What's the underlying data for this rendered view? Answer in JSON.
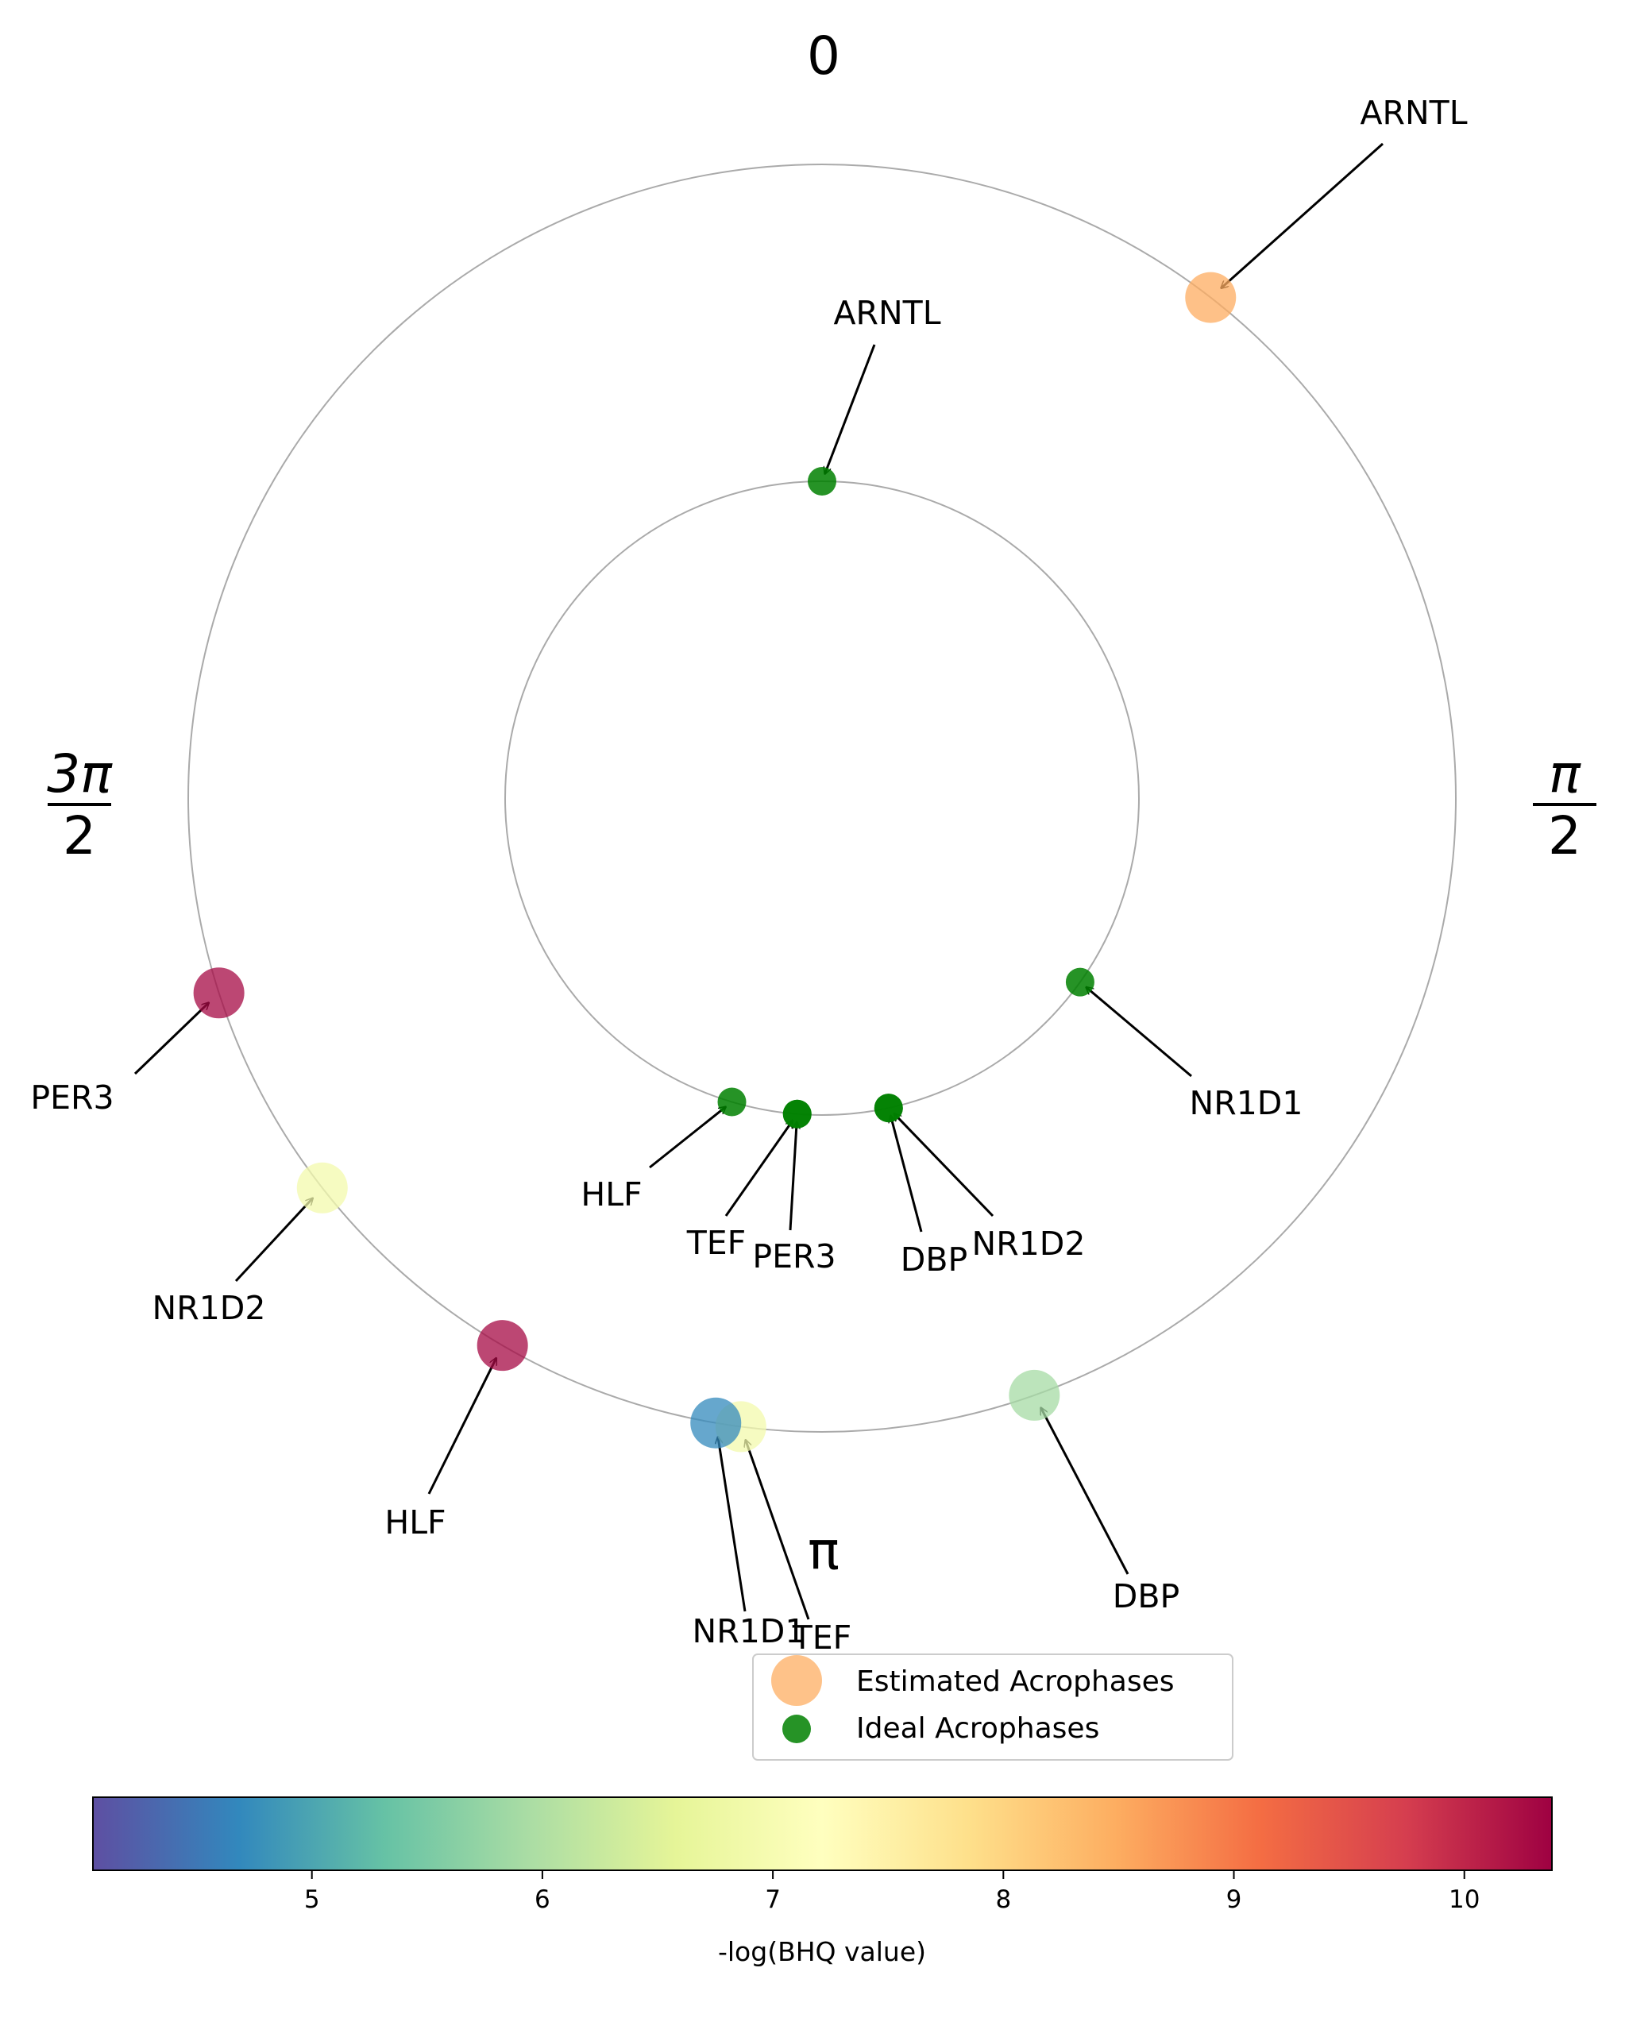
{
  "chart_data": {
    "type": "scatter",
    "coordinate_system": "polar",
    "angular_direction": "clockwise",
    "angular_zero": "top",
    "angular_tick_labels": [
      "0",
      "π/2",
      "π",
      "3π/2"
    ],
    "rings": [
      {
        "name": "Ideal Acrophases",
        "radius": 1.0
      },
      {
        "name": "Estimated Acrophases",
        "radius": 2.0
      }
    ],
    "series": [
      {
        "name": "Estimated Acrophases",
        "radius": 2.0,
        "points": [
          {
            "gene": "ARNTL",
            "theta": 0.66,
            "neg_log_bhq": 8.5
          },
          {
            "gene": "DBP",
            "theta": 2.8,
            "neg_log_bhq": 5.9
          },
          {
            "gene": "TEF",
            "theta": 3.27,
            "neg_log_bhq": 6.9
          },
          {
            "gene": "NR1D1",
            "theta": 3.31,
            "neg_log_bhq": 4.7
          },
          {
            "gene": "HLF",
            "theta": 3.67,
            "neg_log_bhq": 10.3
          },
          {
            "gene": "NR1D2",
            "theta": 4.05,
            "neg_log_bhq": 6.9
          },
          {
            "gene": "PER3",
            "theta": 4.4,
            "neg_log_bhq": 10.3
          }
        ]
      },
      {
        "name": "Ideal Acrophases",
        "radius": 1.0,
        "points": [
          {
            "gene": "ARNTL",
            "theta": 0.0
          },
          {
            "gene": "NR1D1",
            "theta": 2.19
          },
          {
            "gene": "NR1D2",
            "theta": 2.93
          },
          {
            "gene": "DBP",
            "theta": 2.93
          },
          {
            "gene": "PER3",
            "theta": 3.22
          },
          {
            "gene": "TEF",
            "theta": 3.22
          },
          {
            "gene": "HLF",
            "theta": 3.43
          }
        ]
      }
    ],
    "legend": {
      "placement": "bottom-center",
      "entries": [
        {
          "label": "Estimated Acrophases",
          "color": "#fdae61"
        },
        {
          "label": "Ideal Acrophases",
          "color": "#008000"
        }
      ]
    },
    "colorbar": {
      "label": "-log(BHQ value)",
      "colormap": "Spectral_r",
      "range": [
        4.05,
        10.38
      ],
      "ticks": [
        "5",
        "6",
        "7",
        "8",
        "9",
        "10"
      ],
      "orientation": "horizontal"
    },
    "grid": false
  }
}
